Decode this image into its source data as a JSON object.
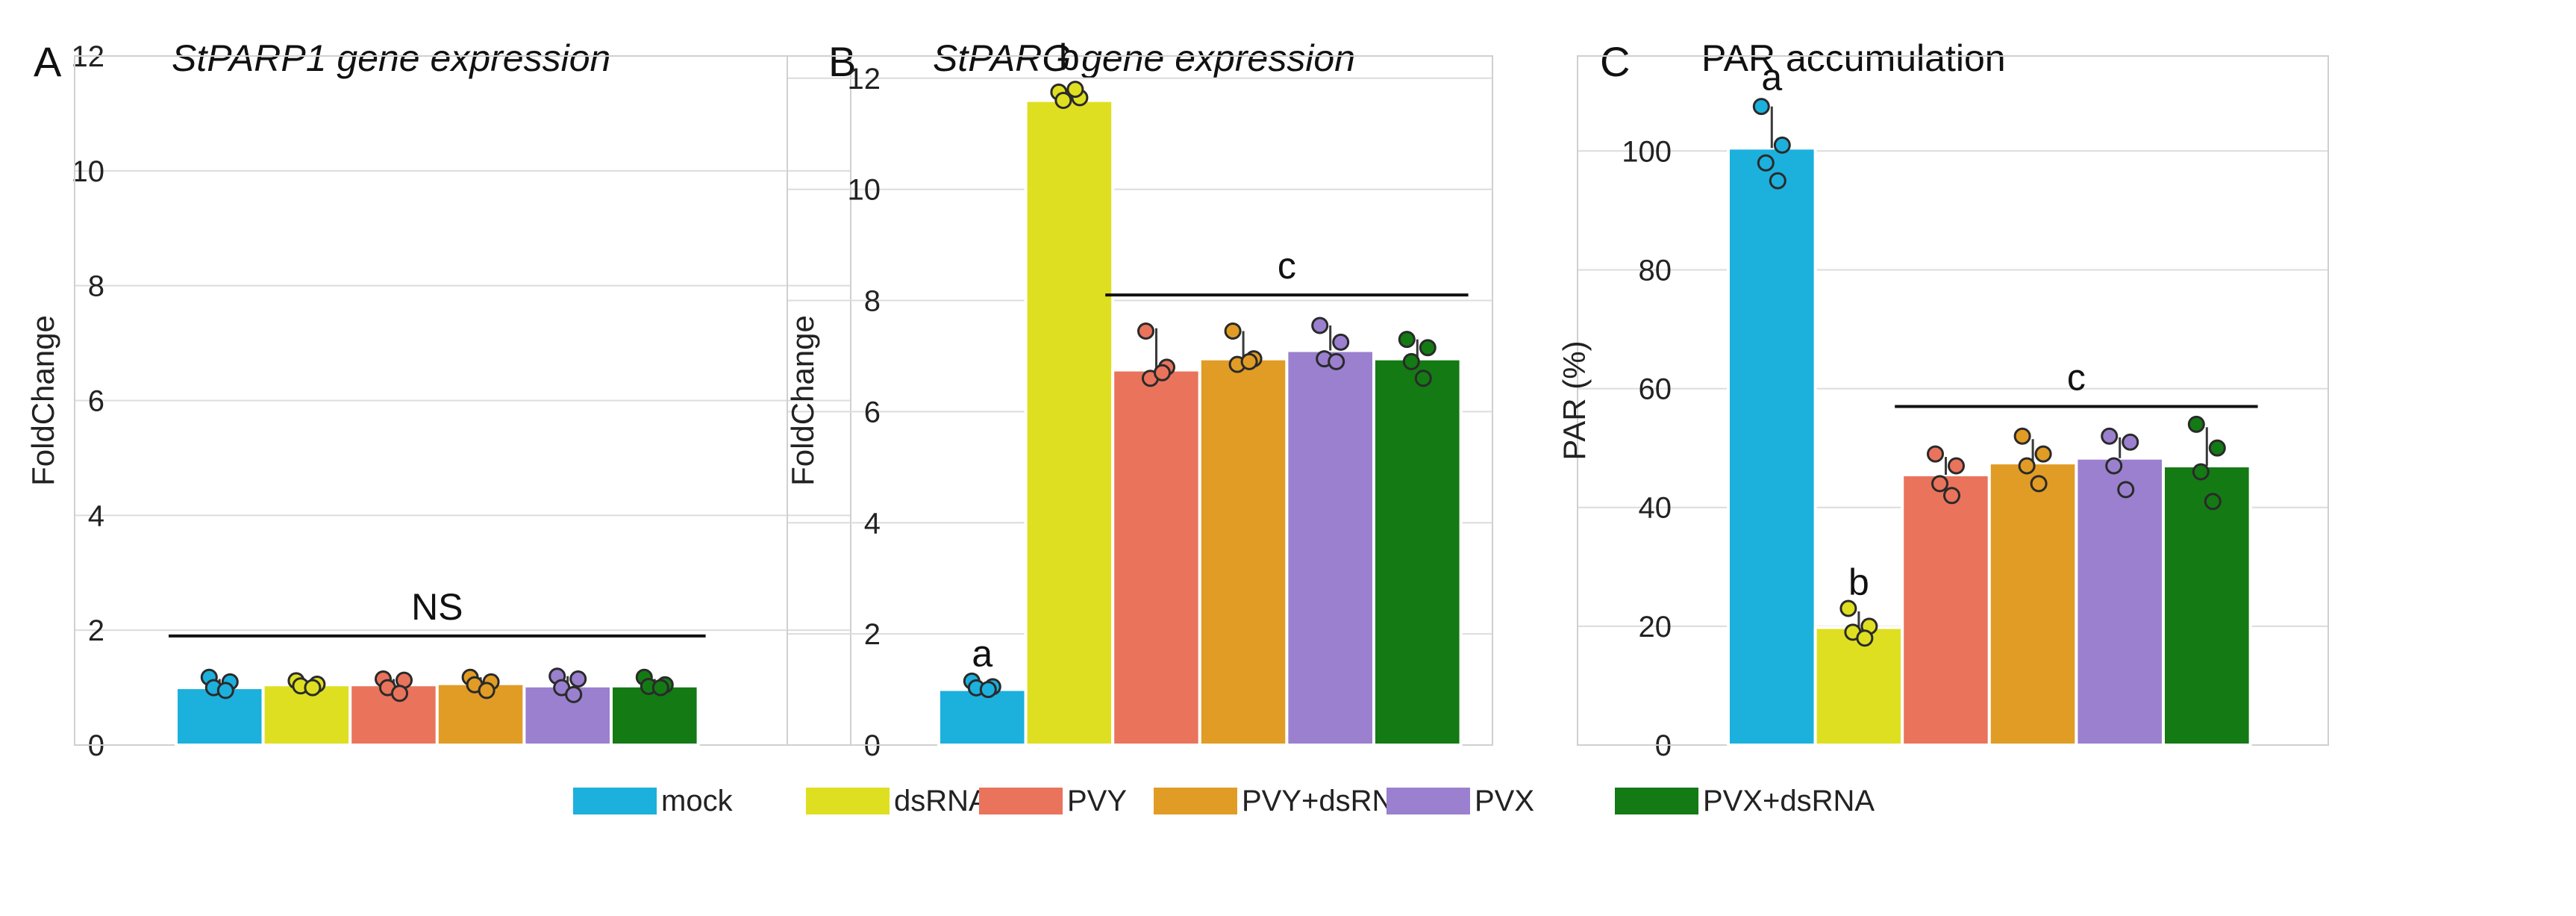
{
  "chart_data": [
    {
      "type": "bar",
      "panel_letter": "A",
      "title": "StPARP1 gene expression",
      "title_italic": true,
      "ylabel": "FoldChange",
      "ylim": [
        0,
        12
      ],
      "yticks": [
        0,
        2,
        4,
        6,
        8,
        10,
        12
      ],
      "categories": [
        "mock",
        "dsRNA",
        "PVY",
        "PVY+dsRNA",
        "PVX",
        "PVX+dsRNA"
      ],
      "values": [
        1.0,
        1.05,
        1.05,
        1.07,
        1.03,
        1.03
      ],
      "error_top": [
        1.15,
        1.12,
        1.15,
        1.18,
        1.2,
        1.15
      ],
      "points": [
        [
          1.18,
          1.1,
          1.0,
          0.95
        ],
        [
          1.12,
          1.06,
          1.03,
          1.0
        ],
        [
          1.15,
          1.13,
          1.0,
          0.9
        ],
        [
          1.18,
          1.1,
          1.05,
          0.95
        ],
        [
          1.2,
          1.15,
          1.0,
          0.88
        ],
        [
          1.18,
          1.05,
          1.02,
          1.0
        ]
      ],
      "letters": [
        "",
        "",
        "",
        "",
        "",
        ""
      ],
      "group_label": {
        "text": "NS",
        "from": 0,
        "to": 5,
        "y": 1.9
      }
    },
    {
      "type": "bar",
      "panel_letter": "B",
      "title": "StPARG gene expression",
      "title_italic": true,
      "ylabel": "FoldChange",
      "ylim": [
        0,
        12.4
      ],
      "yticks": [
        0,
        2,
        4,
        6,
        8,
        10,
        12
      ],
      "categories": [
        "mock",
        "dsRNA",
        "PVY",
        "PVY+dsRNA",
        "PVX",
        "PVX+dsRNA"
      ],
      "values": [
        1.0,
        11.6,
        6.75,
        6.95,
        7.1,
        6.95
      ],
      "error_top": [
        1.12,
        11.85,
        7.5,
        7.45,
        7.55,
        7.3
      ],
      "points": [
        [
          1.15,
          1.05,
          1.03,
          1.0
        ],
        [
          11.75,
          11.65,
          11.6,
          11.8
        ],
        [
          7.45,
          6.8,
          6.6,
          6.7
        ],
        [
          7.45,
          6.95,
          6.85,
          6.9
        ],
        [
          7.55,
          7.25,
          6.95,
          6.9
        ],
        [
          7.3,
          7.15,
          6.9,
          6.6
        ]
      ],
      "letters": [
        "a",
        "b",
        "",
        "",
        "",
        ""
      ],
      "group_label": {
        "text": "c",
        "from": 2,
        "to": 5,
        "y": 8.1
      }
    },
    {
      "type": "bar",
      "panel_letter": "C",
      "title": "PAR accumulation",
      "title_italic": false,
      "ylabel": "PAR (%)",
      "ylim": [
        0,
        116
      ],
      "yticks": [
        0,
        20,
        40,
        60,
        80,
        100
      ],
      "categories": [
        "mock",
        "dsRNA",
        "PVY",
        "PVY+dsRNA",
        "PVX",
        "PVX+dsRNA"
      ],
      "values": [
        100.5,
        19.8,
        45.5,
        47.5,
        48.3,
        47.0
      ],
      "error_top": [
        107.5,
        22.5,
        48.5,
        51.5,
        51.8,
        53.5
      ],
      "points": [
        [
          107.5,
          101,
          98,
          95
        ],
        [
          23,
          20,
          19,
          18
        ],
        [
          49,
          47,
          44,
          42
        ],
        [
          52,
          49,
          47,
          44
        ],
        [
          52,
          51,
          47,
          43
        ],
        [
          54,
          50,
          46,
          41
        ]
      ],
      "letters": [
        "a",
        "b",
        "",
        "",
        "",
        ""
      ],
      "group_label": {
        "text": "c",
        "from": 2,
        "to": 5,
        "y": 57
      }
    }
  ],
  "legend": [
    {
      "label": "mock",
      "color": "#1cb0dd"
    },
    {
      "label": "dsRNA",
      "color": "#dfdf22"
    },
    {
      "label": "PVY",
      "color": "#ea735c"
    },
    {
      "label": "PVY+dsRNA",
      "color": "#e19c25"
    },
    {
      "label": "PVX",
      "color": "#9a80ce"
    },
    {
      "label": "PVX+dsRNA",
      "color": "#147a14"
    }
  ]
}
